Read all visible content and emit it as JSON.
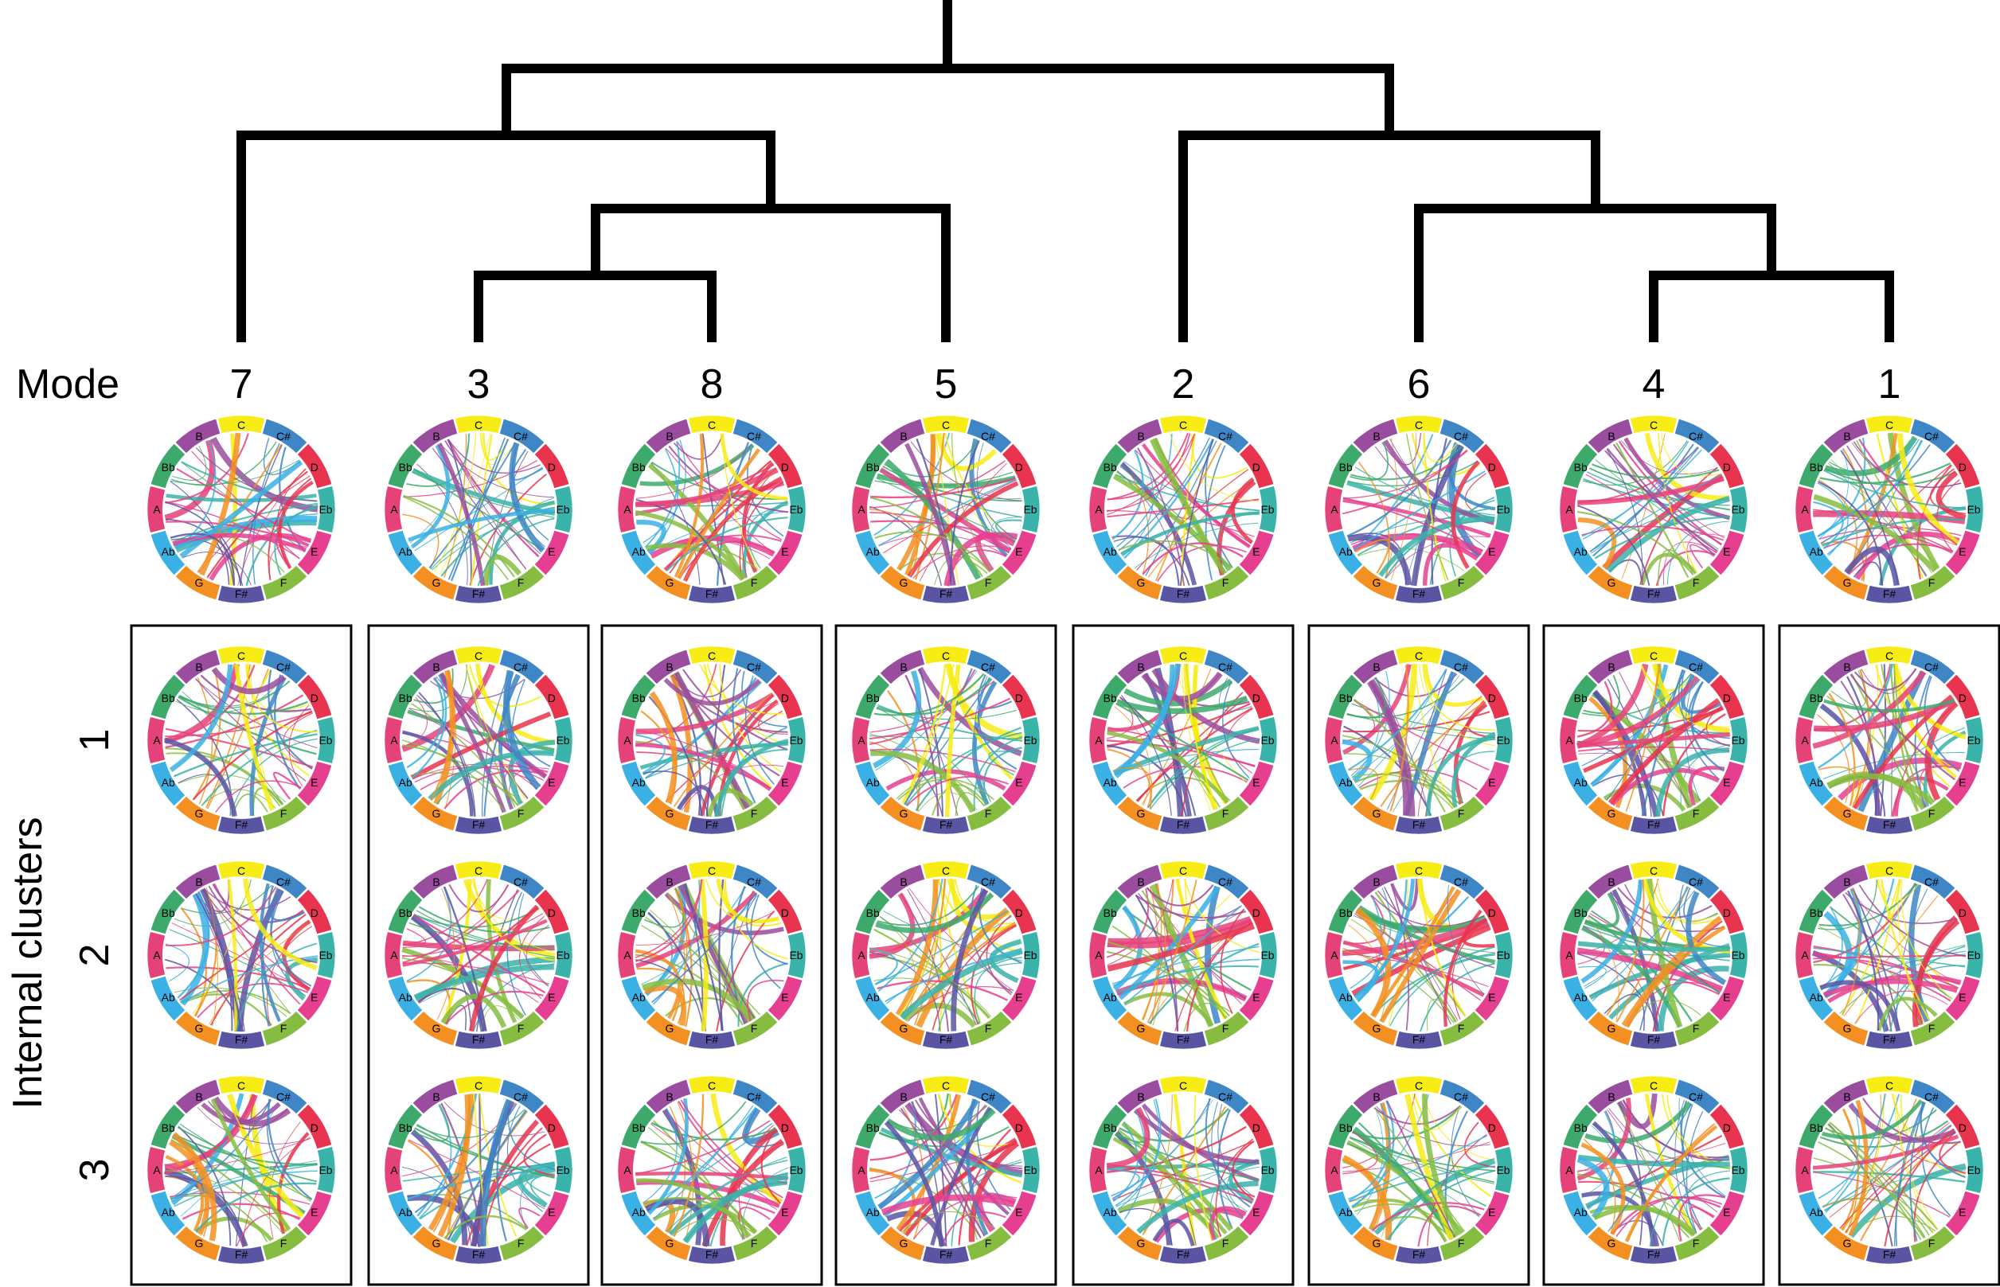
{
  "labels": {
    "mode": "Mode",
    "internal_clusters": "Internal clusters"
  },
  "modes": [
    "7",
    "3",
    "8",
    "5",
    "2",
    "6",
    "4",
    "1"
  ],
  "cluster_rows": [
    "1",
    "2",
    "3"
  ],
  "note_ring": [
    {
      "note": "C",
      "color": "#f7ec13"
    },
    {
      "note": "C#",
      "color": "#3e86c6"
    },
    {
      "note": "D",
      "color": "#e8344e"
    },
    {
      "note": "Eb",
      "color": "#3ab3aa"
    },
    {
      "note": "E",
      "color": "#e63f8f"
    },
    {
      "note": "F",
      "color": "#86bd40"
    },
    {
      "note": "F#",
      "color": "#5a55a3"
    },
    {
      "note": "G",
      "color": "#f39021"
    },
    {
      "note": "Ab",
      "color": "#3ab0e4"
    },
    {
      "note": "A",
      "color": "#e6427a"
    },
    {
      "note": "Bb",
      "color": "#3daa6b"
    },
    {
      "note": "B",
      "color": "#9a4d9e"
    }
  ]
}
